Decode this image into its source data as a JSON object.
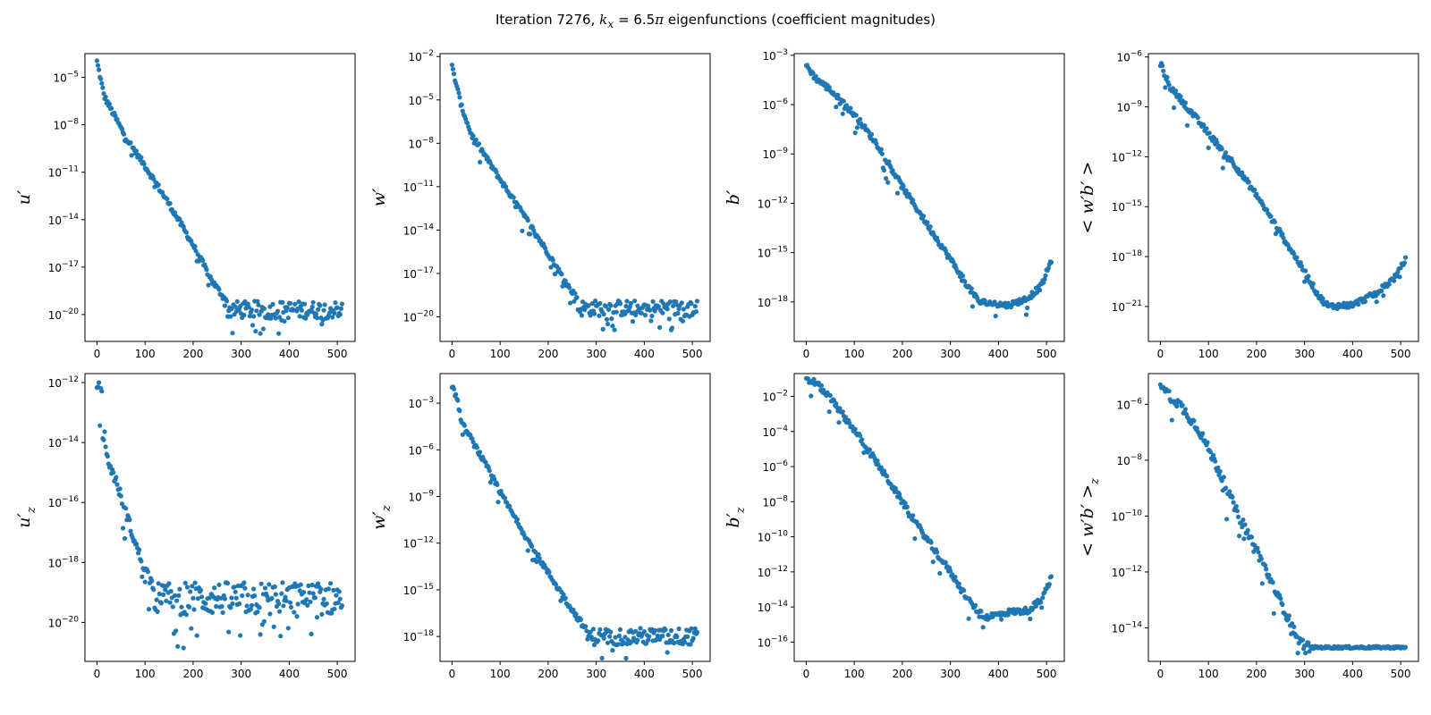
{
  "figure": {
    "title_prefix": "Iteration 7276, ",
    "title_kx": "k",
    "title_kx_sub": "x",
    "title_mid": " = 6.5",
    "title_pi": "π",
    "title_suffix": " eigenfunctions (coefficient magnitudes)"
  },
  "colors": {
    "marker": "#1f77b4",
    "axes": "#000000"
  },
  "chart_data": [
    {
      "type": "scatter",
      "panel": "u'",
      "ylabel": "u′",
      "scale": "log",
      "xlim": [
        -25,
        537
      ],
      "xticks": [
        0,
        100,
        200,
        300,
        400,
        500
      ],
      "ylim_exp": [
        -21.7,
        -3.5
      ],
      "yticks_exp": [
        -5,
        -8,
        -11,
        -14,
        -17,
        -20
      ],
      "n": 512,
      "decay": [
        [
          0,
          -4.0
        ],
        [
          15,
          -6.2
        ],
        [
          60,
          -8.8
        ],
        [
          100,
          -10.6
        ],
        [
          150,
          -13.0
        ],
        [
          200,
          -15.6
        ],
        [
          240,
          -17.9
        ],
        [
          270,
          -19.2
        ]
      ],
      "floor": -19.7,
      "floor_min": -21.2
    },
    {
      "type": "scatter",
      "panel": "w'",
      "ylabel": "w′",
      "scale": "log",
      "xlim": [
        -25,
        537
      ],
      "xticks": [
        0,
        100,
        200,
        300,
        400,
        500
      ],
      "ylim_exp": [
        -21.7,
        -1.8
      ],
      "yticks_exp": [
        -2,
        -5,
        -8,
        -11,
        -14,
        -17,
        -20
      ],
      "n": 512,
      "decay": [
        [
          0,
          -2.7
        ],
        [
          20,
          -5.5
        ],
        [
          40,
          -7.4
        ],
        [
          60,
          -8.4
        ],
        [
          100,
          -10.5
        ],
        [
          150,
          -13.0
        ],
        [
          200,
          -15.6
        ],
        [
          240,
          -17.8
        ],
        [
          260,
          -18.7
        ]
      ],
      "floor": -19.4,
      "floor_min": -20.9
    },
    {
      "type": "scatter",
      "panel": "b'",
      "ylabel": "b′",
      "scale": "log",
      "xlim": [
        -25,
        537
      ],
      "xticks": [
        0,
        100,
        200,
        300,
        400,
        500
      ],
      "ylim_exp": [
        -20.4,
        -2.9
      ],
      "yticks_exp": [
        -3,
        -6,
        -9,
        -12,
        -15,
        -18
      ],
      "n": 512,
      "decay": [
        [
          0,
          -3.6
        ],
        [
          20,
          -4.4
        ],
        [
          50,
          -5.1
        ],
        [
          100,
          -6.6
        ],
        [
          150,
          -8.5
        ],
        [
          200,
          -11.0
        ],
        [
          250,
          -13.2
        ],
        [
          300,
          -15.4
        ],
        [
          340,
          -17.2
        ],
        [
          360,
          -18.0
        ],
        [
          420,
          -18.2
        ],
        [
          460,
          -17.8
        ],
        [
          490,
          -17.0
        ],
        [
          512,
          -15.3
        ]
      ],
      "floor": null,
      "floor_min": -19.7
    },
    {
      "type": "scatter",
      "panel": "<w'b'>",
      "ylabel": "< w′b′ >",
      "scale": "log",
      "xlim": [
        -25,
        537
      ],
      "xticks": [
        0,
        100,
        200,
        300,
        400,
        500
      ],
      "ylim_exp": [
        -23.1,
        -5.8
      ],
      "yticks_exp": [
        -6,
        -9,
        -12,
        -15,
        -18,
        -21
      ],
      "n": 512,
      "decay": [
        [
          0,
          -6.4
        ],
        [
          20,
          -7.8
        ],
        [
          50,
          -8.8
        ],
        [
          100,
          -10.6
        ],
        [
          150,
          -12.3
        ],
        [
          200,
          -14.3
        ],
        [
          250,
          -16.6
        ],
        [
          300,
          -18.9
        ],
        [
          330,
          -20.4
        ],
        [
          350,
          -21.0
        ],
        [
          400,
          -20.9
        ],
        [
          450,
          -20.2
        ],
        [
          490,
          -19.2
        ],
        [
          512,
          -18.1
        ]
      ],
      "floor": null,
      "floor_min": -22.6
    },
    {
      "type": "scatter",
      "panel": "u'_z",
      "ylabel": "u′",
      "ylabel_sub": "z",
      "scale": "log",
      "xlim": [
        -25,
        537
      ],
      "xticks": [
        0,
        100,
        200,
        300,
        400,
        500
      ],
      "ylim_exp": [
        -21.3,
        -11.7
      ],
      "yticks_exp": [
        -12,
        -14,
        -16,
        -18,
        -20
      ],
      "n": 512,
      "decay": [
        [
          0,
          -12.0
        ],
        [
          10,
          -12.4
        ],
        [
          20,
          -14.5
        ],
        [
          40,
          -15.3
        ],
        [
          60,
          -16.3
        ],
        [
          80,
          -17.4
        ],
        [
          100,
          -18.2
        ],
        [
          120,
          -18.9
        ]
      ],
      "floor": -19.2,
      "floor_min": -21.0
    },
    {
      "type": "scatter",
      "panel": "w'_z",
      "ylabel": "w′",
      "ylabel_sub": "z",
      "scale": "log",
      "xlim": [
        -25,
        537
      ],
      "xticks": [
        0,
        100,
        200,
        300,
        400,
        500
      ],
      "ylim_exp": [
        -19.6,
        -1.1
      ],
      "yticks_exp": [
        -3,
        -6,
        -9,
        -12,
        -15,
        -18
      ],
      "n": 512,
      "decay": [
        [
          0,
          -2.0
        ],
        [
          10,
          -2.6
        ],
        [
          20,
          -4.3
        ],
        [
          40,
          -5.3
        ],
        [
          60,
          -6.4
        ],
        [
          100,
          -8.7
        ],
        [
          150,
          -11.4
        ],
        [
          200,
          -13.9
        ],
        [
          250,
          -16.3
        ],
        [
          280,
          -17.6
        ]
      ],
      "floor": -18.0,
      "floor_min": -19.4
    },
    {
      "type": "scatter",
      "panel": "b'_z",
      "ylabel": "b′",
      "ylabel_sub": "z",
      "scale": "log",
      "xlim": [
        -25,
        537
      ],
      "xticks": [
        0,
        100,
        200,
        300,
        400,
        500
      ],
      "ylim_exp": [
        -17.1,
        -0.7
      ],
      "yticks_exp": [
        -2,
        -4,
        -6,
        -8,
        -10,
        -12,
        -14,
        -16
      ],
      "n": 512,
      "decay": [
        [
          0,
          -1.1
        ],
        [
          20,
          -1.2
        ],
        [
          50,
          -2.1
        ],
        [
          100,
          -3.9
        ],
        [
          150,
          -5.9
        ],
        [
          200,
          -8.0
        ],
        [
          250,
          -10.1
        ],
        [
          300,
          -12.0
        ],
        [
          340,
          -13.7
        ],
        [
          370,
          -14.6
        ],
        [
          420,
          -14.3
        ],
        [
          460,
          -14.2
        ],
        [
          490,
          -13.6
        ],
        [
          512,
          -12.2
        ]
      ],
      "floor": null,
      "floor_min": -16.6
    },
    {
      "type": "scatter",
      "panel": "<w'b'>_z",
      "ylabel": "< w′b′ >",
      "ylabel_sub": "z",
      "scale": "log",
      "xlim": [
        -25,
        537
      ],
      "xticks": [
        0,
        100,
        200,
        300,
        400,
        500
      ],
      "ylim_exp": [
        -15.2,
        -4.9
      ],
      "yticks_exp": [
        -6,
        -8,
        -10,
        -12,
        -14
      ],
      "n": 512,
      "decay": [
        [
          0,
          -5.2
        ],
        [
          20,
          -5.7
        ],
        [
          40,
          -6.0
        ],
        [
          80,
          -6.9
        ],
        [
          120,
          -8.3
        ],
        [
          160,
          -9.9
        ],
        [
          200,
          -11.2
        ],
        [
          240,
          -12.7
        ],
        [
          270,
          -13.8
        ],
        [
          290,
          -14.5
        ],
        [
          310,
          -14.7
        ]
      ],
      "floor": -14.7,
      "floor_min": -14.9,
      "floor_flat": true
    }
  ]
}
